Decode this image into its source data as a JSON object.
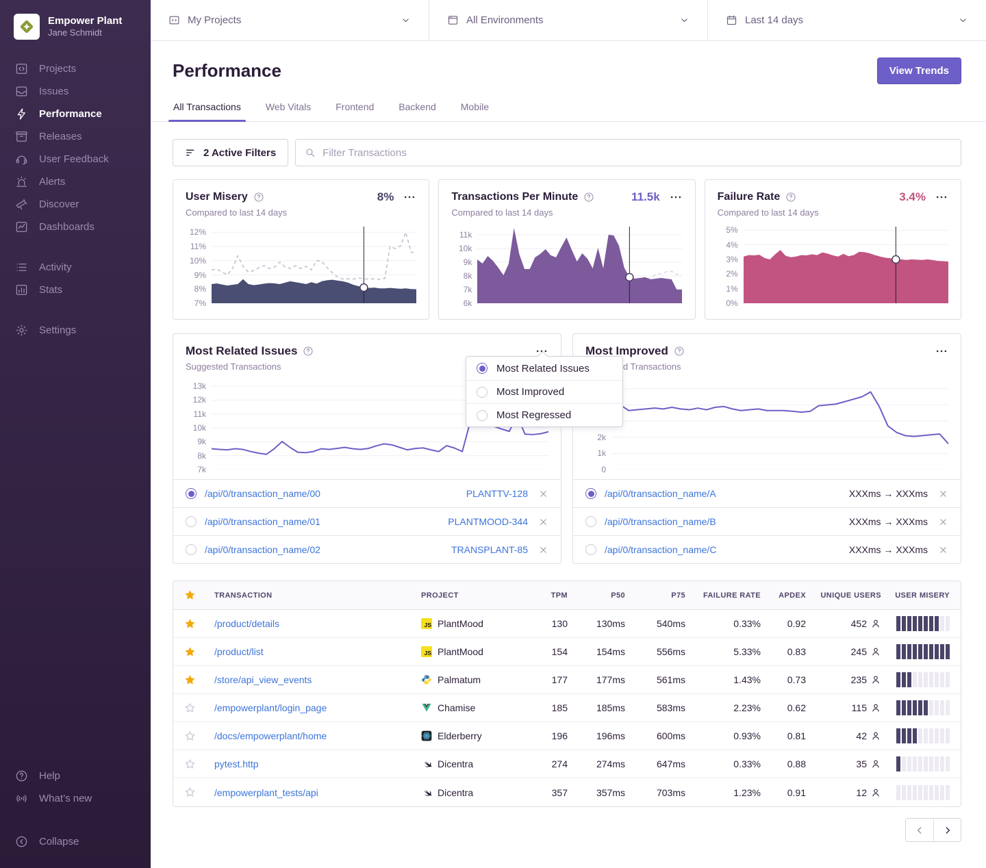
{
  "colors": {
    "accent": "#6C5FC7",
    "link": "#3D74DB",
    "sidebar_top": "#3E2C50",
    "sidebar_bottom": "#2B1B38",
    "star": "#F2A90A",
    "misery_bar": "#4A4468"
  },
  "sidebar": {
    "org": "Empower Plant",
    "user": "Jane Schmidt",
    "items": [
      {
        "id": "projects",
        "label": "Projects",
        "icon": "projects-icon",
        "group": 1
      },
      {
        "id": "issues",
        "label": "Issues",
        "icon": "issues-icon",
        "group": 1
      },
      {
        "id": "performance",
        "label": "Performance",
        "icon": "performance-icon",
        "group": 1,
        "active": true
      },
      {
        "id": "releases",
        "label": "Releases",
        "icon": "releases-icon",
        "group": 1
      },
      {
        "id": "user-feedback",
        "label": "User Feedback",
        "icon": "user-feedback-icon",
        "group": 1
      },
      {
        "id": "alerts",
        "label": "Alerts",
        "icon": "alerts-icon",
        "group": 1
      },
      {
        "id": "discover",
        "label": "Discover",
        "icon": "discover-icon",
        "group": 1
      },
      {
        "id": "dashboards",
        "label": "Dashboards",
        "icon": "dashboards-icon",
        "group": 1
      },
      {
        "id": "activity",
        "label": "Activity",
        "icon": "activity-icon",
        "group": 2
      },
      {
        "id": "stats",
        "label": "Stats",
        "icon": "stats-icon",
        "group": 2
      },
      {
        "id": "settings",
        "label": "Settings",
        "icon": "settings-icon",
        "group": 3
      }
    ],
    "footer": [
      {
        "id": "help",
        "label": "Help",
        "icon": "help-icon",
        "group": 1
      },
      {
        "id": "whats-new",
        "label": "What’s new",
        "icon": "broadcast-icon",
        "group": 1
      },
      {
        "id": "collapse",
        "label": "Collapse",
        "icon": "collapse-icon",
        "group": 2
      }
    ]
  },
  "topbar": {
    "project_filter": {
      "label": "My Projects",
      "icon": "folder-icon"
    },
    "environment_filter": {
      "label": "All Environments",
      "icon": "window-icon"
    },
    "date_filter": {
      "label": "Last 14 days",
      "icon": "calendar-icon"
    }
  },
  "header": {
    "title": "Performance",
    "view_trends": "View Trends"
  },
  "tabs": [
    {
      "label": "All Transactions",
      "active": true
    },
    {
      "label": "Web Vitals",
      "active": false
    },
    {
      "label": "Frontend",
      "active": false
    },
    {
      "label": "Backend",
      "active": false
    },
    {
      "label": "Mobile",
      "active": false
    }
  ],
  "filter_bar": {
    "active_filters": "2 Active Filters",
    "search_placeholder": "Filter Transactions"
  },
  "metric_cards": [
    {
      "id": "user_misery",
      "title": "User Misery",
      "value": "8%",
      "value_color": "#494266",
      "subtitle": "Compared to last 14 days"
    },
    {
      "id": "tpm",
      "title": "Transactions Per Minute",
      "value": "11.5k",
      "value_color": "#6C5FC7",
      "subtitle": "Compared to last 14 days"
    },
    {
      "id": "failure_rate",
      "title": "Failure Rate",
      "value": "3.4%",
      "value_color": "#C2557F",
      "subtitle": "Compared to last 14 days"
    }
  ],
  "panels": {
    "left": {
      "title": "Most Related Issues",
      "subtitle": "Suggested Transactions",
      "chart": "related_issues",
      "rows": [
        {
          "selected": true,
          "transaction": "/api/0/transaction_name/00",
          "meta": "PLANTTV-128"
        },
        {
          "selected": false,
          "transaction": "/api/0/transaction_name/01",
          "meta": "PLANTMOOD-344"
        },
        {
          "selected": false,
          "transaction": "/api/0/transaction_name/02",
          "meta": "TRANSPLANT-85"
        }
      ]
    },
    "right": {
      "title": "Most Improved",
      "subtitle": "Suggested Transactions",
      "chart": "improved",
      "rows": [
        {
          "selected": true,
          "transaction": "/api/0/transaction_name/A",
          "meta": "XXXms → XXXms"
        },
        {
          "selected": false,
          "transaction": "/api/0/transaction_name/B",
          "meta": "XXXms → XXXms"
        },
        {
          "selected": false,
          "transaction": "/api/0/transaction_name/C",
          "meta": "XXXms → XXXms"
        }
      ]
    }
  },
  "dropdown": {
    "items": [
      {
        "label": "Most Related Issues",
        "selected": true
      },
      {
        "label": "Most Improved",
        "selected": false
      },
      {
        "label": "Most Regressed",
        "selected": false
      }
    ]
  },
  "table": {
    "columns": [
      "TRANSACTION",
      "PROJECT",
      "TPM",
      "P50",
      "P75",
      "FAILURE RATE",
      "APDEX",
      "UNIQUE USERS",
      "USER MISERY"
    ],
    "rows": [
      {
        "starred": true,
        "transaction": "/product/details",
        "platform": "javascript",
        "project": "PlantMood",
        "tpm": "130",
        "p50": "130ms",
        "p75": "540ms",
        "failure_rate": "0.33%",
        "apdex": "0.92",
        "unique_users": "452",
        "misery": 8
      },
      {
        "starred": true,
        "transaction": "/product/list",
        "platform": "javascript",
        "project": "PlantMood",
        "tpm": "154",
        "p50": "154ms",
        "p75": "556ms",
        "failure_rate": "5.33%",
        "apdex": "0.83",
        "unique_users": "245",
        "misery": 10
      },
      {
        "starred": true,
        "transaction": "/store/api_view_events",
        "platform": "python",
        "project": "Palmatum",
        "tpm": "177",
        "p50": "177ms",
        "p75": "561ms",
        "failure_rate": "1.43%",
        "apdex": "0.73",
        "unique_users": "235",
        "misery": 3
      },
      {
        "starred": false,
        "transaction": "/empowerplant/login_page",
        "platform": "vue",
        "project": "Chamise",
        "tpm": "185",
        "p50": "185ms",
        "p75": "583ms",
        "failure_rate": "2.23%",
        "apdex": "0.62",
        "unique_users": "115",
        "misery": 6
      },
      {
        "starred": false,
        "transaction": "/docs/empowerplant/home",
        "platform": "react",
        "project": "Elderberry",
        "tpm": "196",
        "p50": "196ms",
        "p75": "600ms",
        "failure_rate": "0.93%",
        "apdex": "0.81",
        "unique_users": "42",
        "misery": 4
      },
      {
        "starred": false,
        "transaction": "pytest.http",
        "platform": "swift",
        "project": "Dicentra",
        "tpm": "274",
        "p50": "274ms",
        "p75": "647ms",
        "failure_rate": "0.33%",
        "apdex": "0.88",
        "unique_users": "35",
        "misery": 1
      },
      {
        "starred": false,
        "transaction": "/empowerplant_tests/api",
        "platform": "swift",
        "project": "Dicentra",
        "tpm": "357",
        "p50": "357ms",
        "p75": "703ms",
        "failure_rate": "1.23%",
        "apdex": "0.91",
        "unique_users": "12",
        "misery": 0
      }
    ]
  },
  "chart_data": [
    {
      "id": "user_misery",
      "type": "area",
      "title": "User Misery",
      "ylabel": "misery %",
      "ylim": [
        7,
        12.4
      ],
      "grid": true,
      "yticks": [
        {
          "v": 12,
          "label": "12%"
        },
        {
          "v": 11,
          "label": "11%"
        },
        {
          "v": 10,
          "label": "10%"
        },
        {
          "v": 9,
          "label": "9%"
        },
        {
          "v": 8,
          "label": "8%"
        },
        {
          "v": 7,
          "label": "7%"
        }
      ],
      "color": "#4A4E72",
      "prev_color": "#C6C0D0",
      "marker_index": 29,
      "series": [
        {
          "name": "current",
          "values": [
            8.35,
            8.4,
            8.32,
            8.25,
            8.3,
            8.35,
            8.7,
            8.35,
            8.28,
            8.32,
            8.38,
            8.42,
            8.4,
            8.35,
            8.45,
            8.55,
            8.48,
            8.42,
            8.35,
            8.48,
            8.38,
            8.55,
            8.62,
            8.66,
            8.6,
            8.55,
            8.45,
            8.3,
            8.2,
            8.1,
            8.08,
            8.1,
            8.05,
            8.05,
            8.08,
            8.05,
            8.02,
            8.05,
            8.0,
            7.98
          ]
        },
        {
          "name": "previous period",
          "style": "dashed",
          "values": [
            9.35,
            9.4,
            9.2,
            9.0,
            9.45,
            10.35,
            9.6,
            9.2,
            9.3,
            9.5,
            9.65,
            9.45,
            9.55,
            9.9,
            9.55,
            9.45,
            9.65,
            9.45,
            9.6,
            9.35,
            10.0,
            9.95,
            9.5,
            9.15,
            8.85,
            8.7,
            8.72,
            8.7,
            8.78,
            8.72,
            8.7,
            8.72,
            8.68,
            8.75,
            11.0,
            10.85,
            11.05,
            12.0,
            10.6,
            10.55
          ]
        }
      ]
    },
    {
      "id": "tpm",
      "type": "area",
      "title": "Transactions Per Minute",
      "ylabel": "tpm (k)",
      "ylim": [
        6,
        11.6
      ],
      "grid": true,
      "yticks": [
        {
          "v": 11,
          "label": "11k"
        },
        {
          "v": 10,
          "label": "10k"
        },
        {
          "v": 9,
          "label": "9k"
        },
        {
          "v": 8,
          "label": "8k"
        },
        {
          "v": 7,
          "label": "7k"
        },
        {
          "v": 6,
          "label": "6k"
        }
      ],
      "color": "#7C5A9B",
      "prev_color": "#DCD6E2",
      "marker_index": 29,
      "series": [
        {
          "name": "current",
          "values": [
            9.2,
            8.9,
            9.45,
            9.1,
            8.6,
            8.05,
            8.9,
            11.5,
            9.6,
            8.5,
            8.5,
            9.35,
            9.6,
            9.95,
            9.5,
            9.35,
            10.1,
            10.8,
            9.9,
            9.05,
            9.65,
            9.25,
            8.55,
            10.05,
            8.55,
            11.0,
            10.95,
            10.2,
            8.6,
            7.9,
            7.8,
            7.85,
            7.9,
            7.75,
            7.8,
            7.85,
            7.8,
            7.75,
            7.0,
            7.0
          ]
        },
        {
          "name": "previous period",
          "style": "dashed",
          "values": [
            7.8,
            7.75,
            7.7,
            7.75,
            7.8,
            7.85,
            8.0,
            7.9,
            7.8,
            7.75,
            7.8,
            7.85,
            7.8,
            7.85,
            7.9,
            7.95,
            7.85,
            7.8,
            7.85,
            7.8,
            7.85,
            7.9,
            8.0,
            7.95,
            7.85,
            7.8,
            7.75,
            7.7,
            7.75,
            7.8,
            7.7,
            7.75,
            7.7,
            7.85,
            8.1,
            8.15,
            8.3,
            8.35,
            8.1,
            8.05
          ]
        }
      ]
    },
    {
      "id": "failure_rate",
      "type": "area",
      "title": "Failure Rate",
      "ylabel": "failure %",
      "ylim": [
        0,
        5.25
      ],
      "grid": true,
      "yticks": [
        {
          "v": 5,
          "label": "5%"
        },
        {
          "v": 4,
          "label": "4%"
        },
        {
          "v": 3,
          "label": "3%"
        },
        {
          "v": 2,
          "label": "2%"
        },
        {
          "v": 1,
          "label": "1%"
        },
        {
          "v": 0,
          "label": "0%"
        }
      ],
      "color": "#C25481",
      "prev_color": "#DCD6E2",
      "marker_index": 29,
      "series": [
        {
          "name": "current",
          "values": [
            3.2,
            3.3,
            3.28,
            3.32,
            3.1,
            3.0,
            3.35,
            3.65,
            3.25,
            3.15,
            3.2,
            3.3,
            3.28,
            3.35,
            3.3,
            3.48,
            3.4,
            3.28,
            3.2,
            3.38,
            3.22,
            3.3,
            3.52,
            3.5,
            3.42,
            3.3,
            3.2,
            3.12,
            3.08,
            3.0,
            3.0,
            2.96,
            3.0,
            2.98,
            2.96,
            3.0,
            2.96,
            2.9,
            2.88,
            2.86
          ]
        },
        {
          "name": "previous period",
          "style": "dashed",
          "values": [
            1.85,
            1.9,
            1.88,
            1.82,
            1.8,
            1.85,
            2.0,
            1.95,
            1.85,
            1.8,
            1.85,
            1.9,
            1.85,
            1.9,
            1.95,
            1.9,
            1.85,
            1.82,
            1.85,
            1.8,
            1.85,
            1.9,
            1.95,
            1.9,
            1.85,
            1.8,
            1.78,
            1.75,
            1.72,
            1.75,
            1.72,
            1.75,
            1.72,
            1.78,
            2.05,
            2.0,
            2.1,
            2.2,
            2.1,
            2.05
          ]
        }
      ]
    },
    {
      "id": "related_issues",
      "type": "line",
      "title": "Most Related Issues",
      "ylabel": "transactions (k)",
      "ylim": [
        7,
        13.4
      ],
      "grid": true,
      "yticks": [
        {
          "v": 13,
          "label": "13k"
        },
        {
          "v": 12,
          "label": "12k"
        },
        {
          "v": 11,
          "label": "11k"
        },
        {
          "v": 10,
          "label": "10k"
        },
        {
          "v": 9,
          "label": "9k"
        },
        {
          "v": 8,
          "label": "8k"
        },
        {
          "v": 7,
          "label": "7k"
        }
      ],
      "color": "#6C5FC7",
      "series": [
        {
          "name": "transactions",
          "values": [
            8.5,
            8.45,
            8.42,
            8.5,
            8.45,
            8.3,
            8.18,
            8.1,
            8.5,
            9.02,
            8.6,
            8.25,
            8.22,
            8.3,
            8.5,
            8.45,
            8.52,
            8.6,
            8.5,
            8.45,
            8.52,
            8.7,
            8.85,
            8.78,
            8.6,
            8.42,
            8.52,
            8.56,
            8.42,
            8.3,
            8.72,
            8.55,
            8.3,
            10.4,
            10.45,
            10.3,
            10.12,
            9.92,
            9.75,
            10.9,
            9.55,
            9.52,
            9.58,
            9.72
          ]
        }
      ]
    },
    {
      "id": "improved",
      "type": "line",
      "title": "Most Improved",
      "ylabel": "transactions (k)",
      "ylim": [
        0,
        5.5
      ],
      "grid": true,
      "yticks": [
        {
          "v": 5,
          "label": "5k"
        },
        {
          "v": 4,
          "label": "4k"
        },
        {
          "v": 3,
          "label": "3k"
        },
        {
          "v": 2,
          "label": "2k"
        },
        {
          "v": 1,
          "label": "1k"
        },
        {
          "v": 0,
          "label": "0"
        }
      ],
      "color": "#6C5FC7",
      "series": [
        {
          "name": "transactions",
          "values": [
            3.6,
            4.0,
            3.65,
            3.7,
            3.75,
            3.8,
            3.75,
            3.85,
            3.75,
            3.7,
            3.8,
            3.7,
            3.85,
            3.9,
            3.75,
            3.65,
            3.7,
            3.75,
            3.65,
            3.65,
            3.65,
            3.6,
            3.55,
            3.6,
            3.95,
            4.0,
            4.05,
            4.2,
            4.35,
            4.5,
            4.8,
            3.9,
            2.7,
            2.3,
            2.1,
            2.05,
            2.1,
            2.15,
            2.2,
            1.6
          ]
        }
      ]
    }
  ],
  "pagination": {
    "prev": "previous page",
    "next": "next page"
  }
}
